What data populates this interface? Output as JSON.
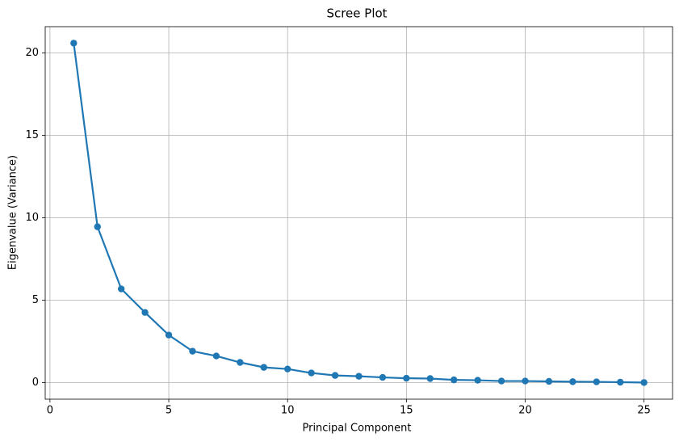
{
  "chart_data": {
    "type": "line",
    "title": "Scree Plot",
    "x_label": "Principal Component",
    "y_label": "Eigenvalue (Variance)",
    "x": [
      1,
      2,
      3,
      4,
      5,
      6,
      7,
      8,
      9,
      10,
      11,
      12,
      13,
      14,
      15,
      16,
      17,
      18,
      19,
      20,
      21,
      22,
      23,
      24,
      25
    ],
    "series": [
      {
        "name": "Eigenvalue",
        "color": "#1f77b4",
        "values": [
          20.6,
          9.46,
          5.69,
          4.26,
          2.89,
          1.91,
          1.62,
          1.23,
          0.93,
          0.83,
          0.59,
          0.44,
          0.39,
          0.32,
          0.27,
          0.25,
          0.17,
          0.15,
          0.1,
          0.1,
          0.08,
          0.06,
          0.05,
          0.03,
          0.01
        ]
      }
    ],
    "xlim": [
      -0.2,
      26.2
    ],
    "xticks": [
      0,
      5,
      10,
      15,
      20,
      25
    ],
    "ylim": [
      -1.0,
      21.6
    ],
    "yticks": [
      0,
      5,
      10,
      15,
      20
    ],
    "grid": true,
    "markers": true
  }
}
